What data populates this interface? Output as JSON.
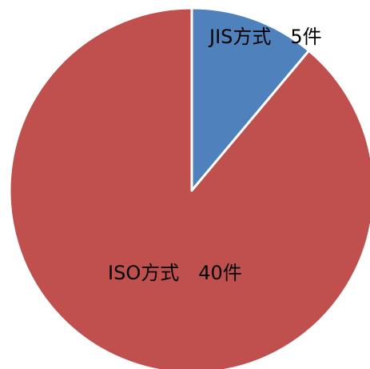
{
  "chart_data": {
    "type": "pie",
    "categories": [
      "JIS方式",
      "ISO方式"
    ],
    "values": [
      5,
      40
    ],
    "value_labels": [
      "5件",
      "40件"
    ],
    "colors": [
      "#4f81bd",
      "#c0504d"
    ]
  }
}
